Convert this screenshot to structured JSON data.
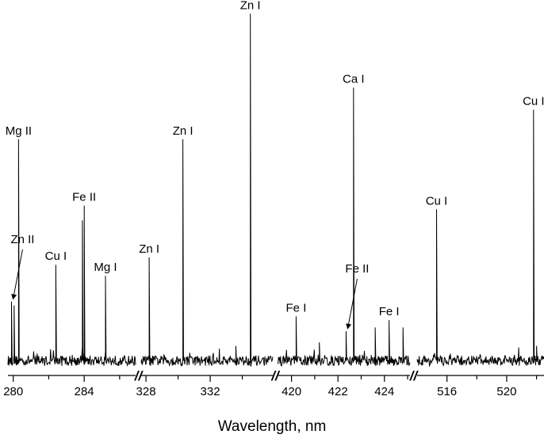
{
  "chart_data": {
    "type": "line",
    "title": "",
    "xlabel": "Wavelength, nm",
    "ylabel": "",
    "grid": false,
    "legend": "none",
    "broken_axis_marker": "//",
    "baseline": 0.04,
    "panels": [
      {
        "xlim": [
          279.7,
          286.9
        ],
        "ticks": [
          280,
          282,
          284,
          286
        ],
        "tick_labels": [
          "280",
          "",
          "284",
          ""
        ],
        "peaks": [
          {
            "x": 280.3,
            "y": 0.64,
            "label": "Mg II"
          },
          {
            "x": 279.9,
            "y": 0.2
          },
          {
            "x": 280.05,
            "y": 0.19
          },
          {
            "x": 282.4,
            "y": 0.3,
            "label": "Cu I"
          },
          {
            "x": 283.9,
            "y": 0.42
          },
          {
            "x": 284.0,
            "y": 0.46,
            "label": "Fe II"
          },
          {
            "x": 285.2,
            "y": 0.27,
            "label": "Mg I"
          }
        ],
        "annotations": [
          {
            "text": "Zn II",
            "x": 279.9,
            "y": 0.2,
            "arrow": true
          }
        ]
      },
      {
        "xlim": [
          327.7,
          335.9
        ],
        "ticks": [
          328,
          330,
          332,
          334
        ],
        "tick_labels": [
          "328",
          "",
          "332",
          ""
        ],
        "peaks": [
          {
            "x": 328.2,
            "y": 0.32,
            "label": "Zn I"
          },
          {
            "x": 330.3,
            "y": 0.64,
            "label": "Zn I"
          },
          {
            "x": 333.6,
            "y": 0.08
          },
          {
            "x": 334.5,
            "y": 0.98,
            "label": "Zn I"
          }
        ]
      },
      {
        "xlim": [
          419.4,
          425.1
        ],
        "ticks": [
          420,
          421,
          422,
          423,
          424,
          425
        ],
        "tick_labels": [
          "420",
          "",
          "422",
          "",
          "424",
          ""
        ],
        "peaks": [
          {
            "x": 420.2,
            "y": 0.16,
            "label": "Fe I"
          },
          {
            "x": 421.2,
            "y": 0.09
          },
          {
            "x": 422.35,
            "y": 0.12
          },
          {
            "x": 422.67,
            "y": 0.78,
            "label": "Ca I"
          },
          {
            "x": 423.6,
            "y": 0.13
          },
          {
            "x": 424.2,
            "y": 0.15,
            "label": "Fe I"
          },
          {
            "x": 424.8,
            "y": 0.13
          }
        ],
        "annotations": [
          {
            "text": "Fe II",
            "x": 422.35,
            "y": 0.12,
            "arrow": true
          }
        ]
      },
      {
        "xlim": [
          514.0,
          522.5
        ],
        "ticks": [
          516,
          518,
          520,
          522
        ],
        "tick_labels": [
          "516",
          "",
          "520",
          ""
        ],
        "peaks": [
          {
            "x": 515.3,
            "y": 0.45,
            "label": "Cu I"
          },
          {
            "x": 521.8,
            "y": 0.72,
            "label": "Cu I"
          },
          {
            "x": 522.0,
            "y": 0.08
          }
        ]
      }
    ]
  }
}
